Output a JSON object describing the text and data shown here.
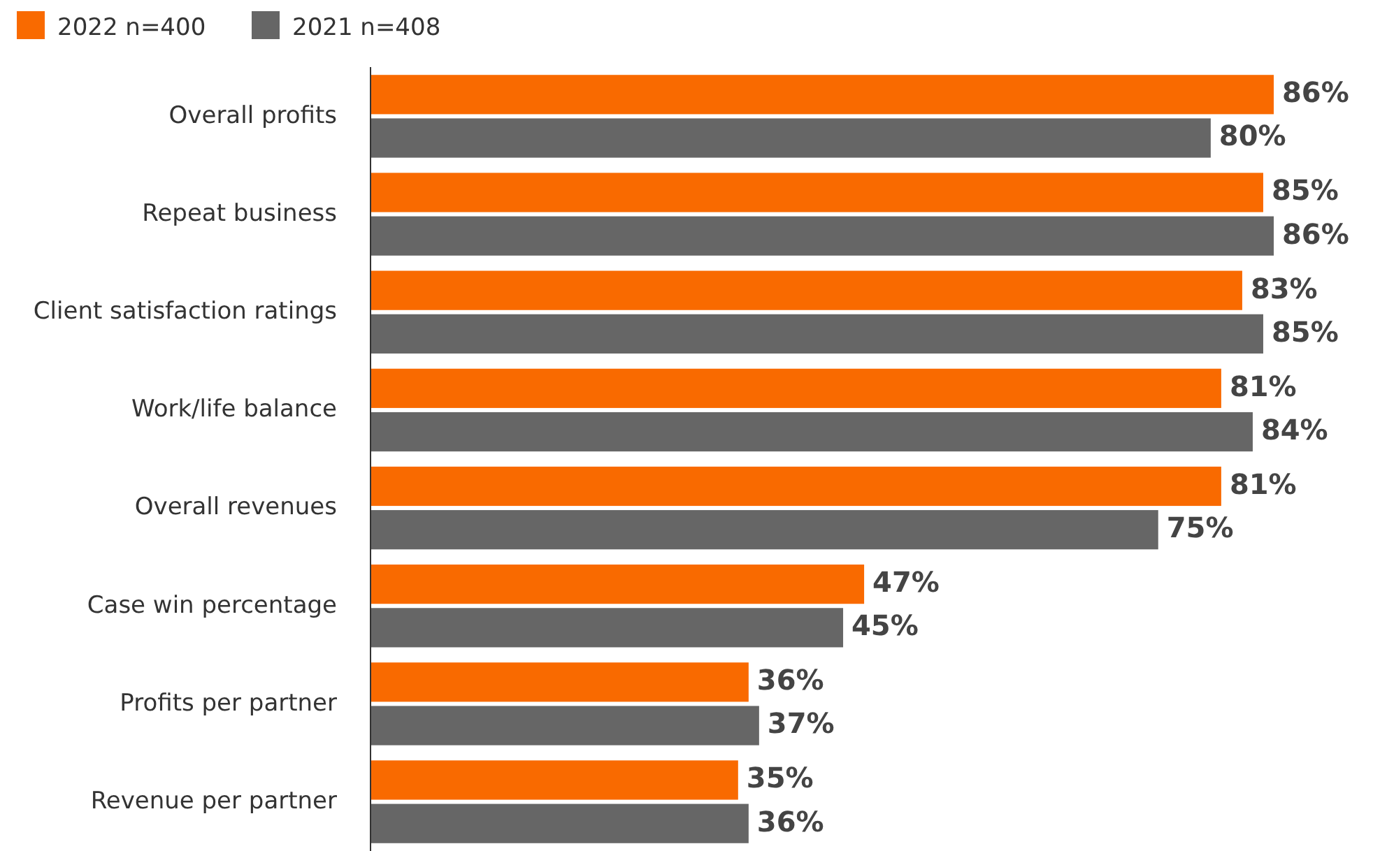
{
  "chart_data": {
    "type": "bar",
    "orientation": "horizontal",
    "categories": [
      "Overall profits",
      "Repeat business",
      "Client satisfaction ratings",
      "Work/life balance",
      "Overall revenues",
      "Case win percentage",
      "Profits per partner",
      "Revenue per partner"
    ],
    "series": [
      {
        "name": "2022 n=400",
        "color": "#f96a00",
        "values": [
          86,
          85,
          83,
          81,
          81,
          47,
          36,
          35
        ],
        "value_labels": [
          "86%",
          "85%",
          "83%",
          "81%",
          "81%",
          "47%",
          "36%",
          "35%"
        ]
      },
      {
        "name": "2021 n=408",
        "color": "#666666",
        "values": [
          80,
          86,
          85,
          84,
          75,
          45,
          37,
          36
        ],
        "value_labels": [
          "80%",
          "86%",
          "85%",
          "84%",
          "75%",
          "45%",
          "37%",
          "36%"
        ]
      }
    ],
    "legend": "top left"
  }
}
